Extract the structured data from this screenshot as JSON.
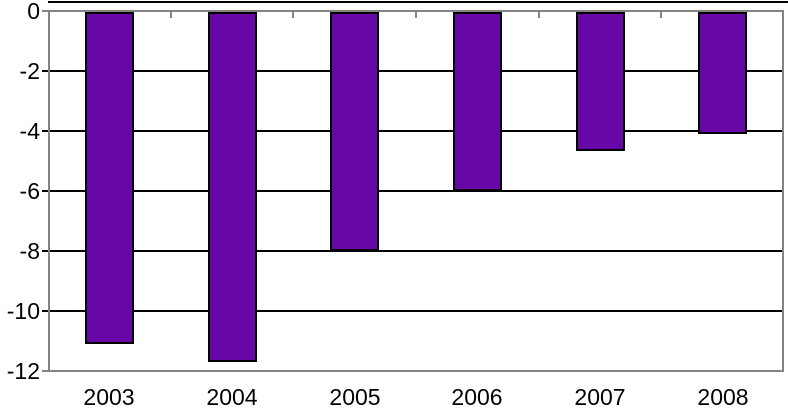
{
  "chart_data": {
    "type": "bar",
    "title": "",
    "xlabel": "",
    "ylabel": "",
    "categories": [
      "2003",
      "2004",
      "2005",
      "2006",
      "2007",
      "2008"
    ],
    "values": [
      -11.1,
      -11.7,
      -8.0,
      -6.0,
      -4.65,
      -4.1
    ],
    "ylim": [
      -12,
      0
    ],
    "yticks": [
      0,
      -2,
      -4,
      -6,
      -8,
      -10,
      -12
    ],
    "ytick_labels": [
      "0",
      "-2",
      "-4",
      "-6",
      "-8",
      "-10",
      "-12"
    ],
    "grid": true,
    "legend": "none",
    "axis_ticks": "category-boundaries-on-zero-line",
    "colors": {
      "bar_fill": "#6708A6",
      "bar_border": "#000000",
      "gridline": "#000000",
      "axis_line": "#848484",
      "top_border": "#000000",
      "background": "#FFFFFF",
      "text": "#000000"
    }
  }
}
